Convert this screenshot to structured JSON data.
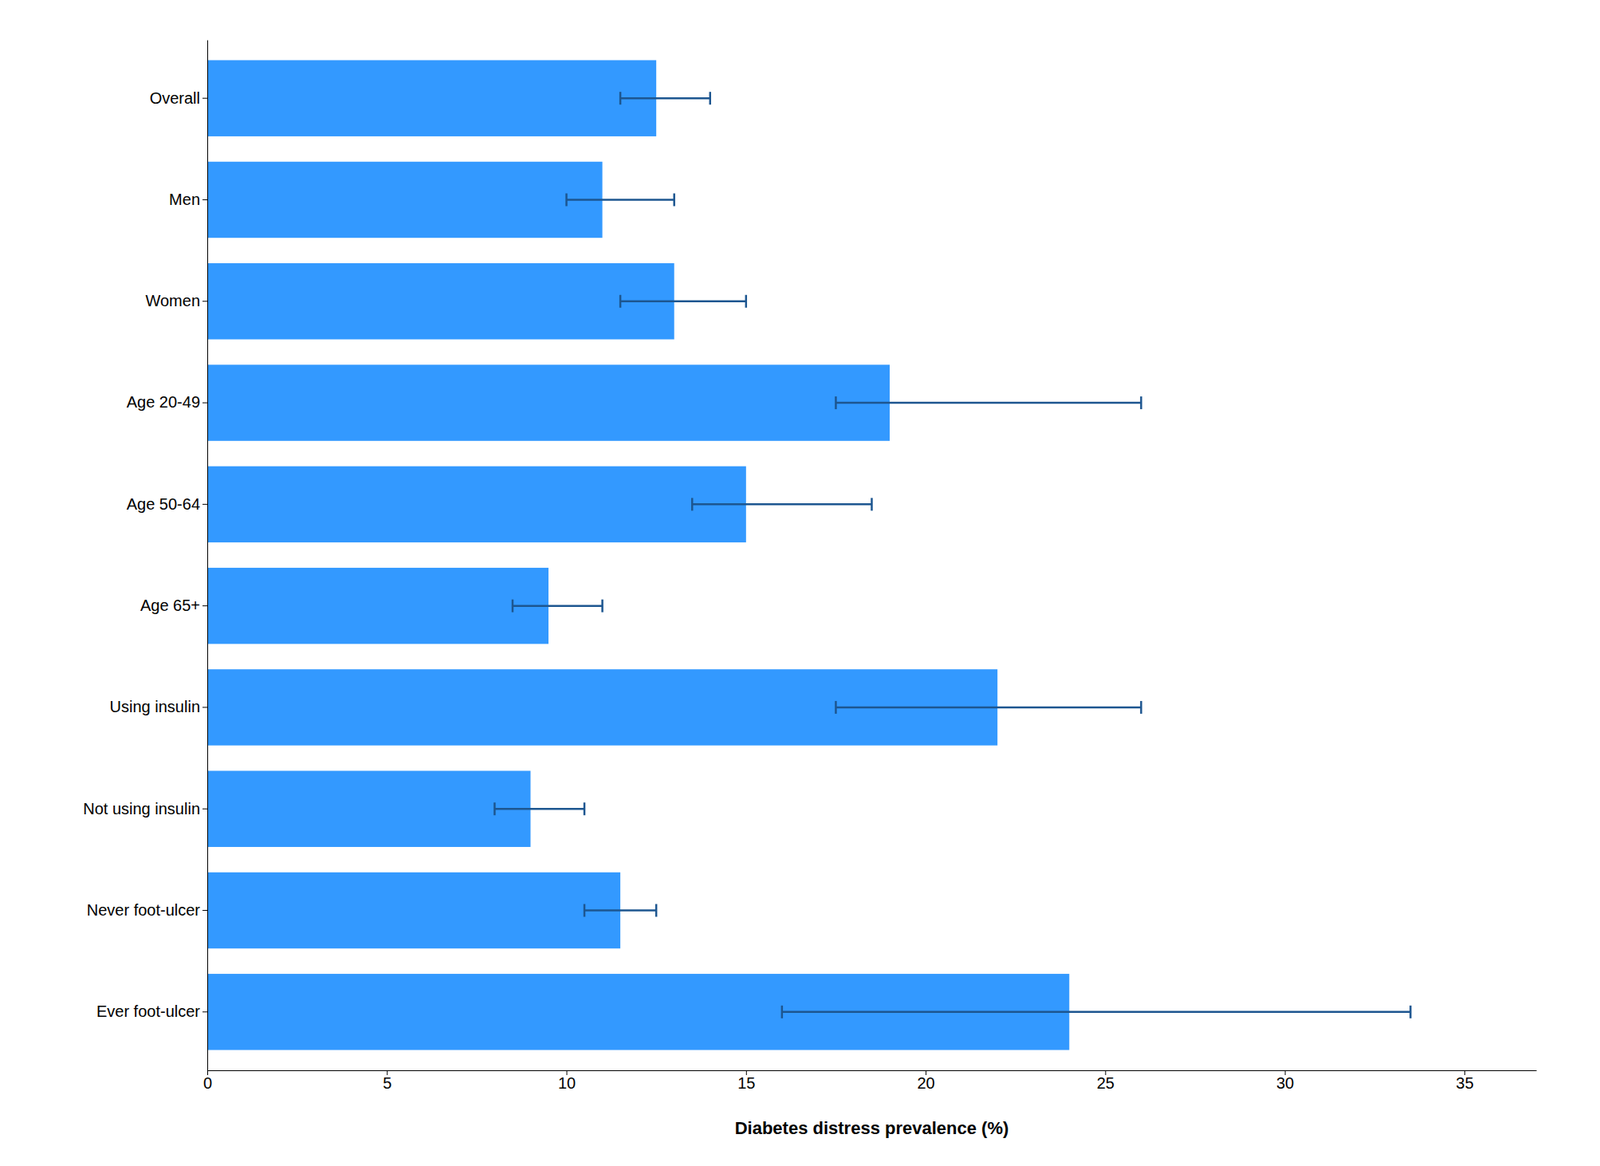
{
  "chart_data": {
    "type": "bar",
    "orientation": "horizontal",
    "xlabel": "Diabetes distress prevalence (%)",
    "categories": [
      "Ever foot-ulcer",
      "Never foot-ulcer",
      "Not using insulin",
      "Using insulin",
      "Age 65+",
      "Age 50-64",
      "Age 20-49",
      "Women",
      "Men",
      "Overall"
    ],
    "values": [
      24.0,
      11.5,
      9.0,
      22.0,
      9.5,
      15.0,
      19.0,
      13.0,
      11.0,
      12.5
    ],
    "ci_lower": [
      16.0,
      10.5,
      8.0,
      17.5,
      8.5,
      13.5,
      17.5,
      11.5,
      10.0,
      11.5
    ],
    "ci_upper": [
      33.5,
      12.5,
      10.5,
      26.0,
      11.0,
      18.5,
      26.0,
      15.0,
      13.0,
      14.0
    ],
    "color": "#3399FF",
    "xlim": [
      0,
      37
    ],
    "xticks": [
      0,
      5,
      10,
      15,
      20,
      25,
      30,
      35
    ],
    "grid": false
  }
}
